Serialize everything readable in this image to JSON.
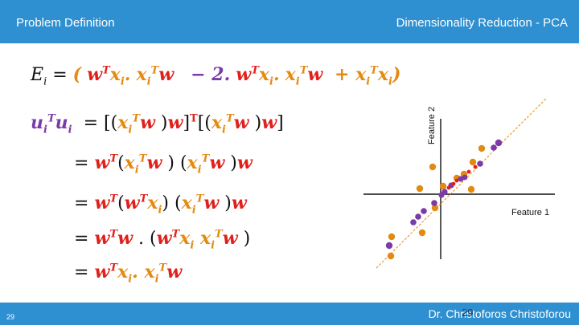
{
  "header": {
    "left_title": "Problem Definition",
    "right_title": "Dimensionality Reduction - PCA"
  },
  "footer": {
    "author": "Dr. Christoforos Christoforou",
    "slide_number_left": "29",
    "slide_number_overlap": "29"
  },
  "plot": {
    "x_label": "Feature 1",
    "y_label": "Feature 2"
  },
  "colors": {
    "header_bg": "#2e8fd1",
    "red": "#e0201b",
    "orange": "#e38a12",
    "purple": "#7b3aa8"
  }
}
